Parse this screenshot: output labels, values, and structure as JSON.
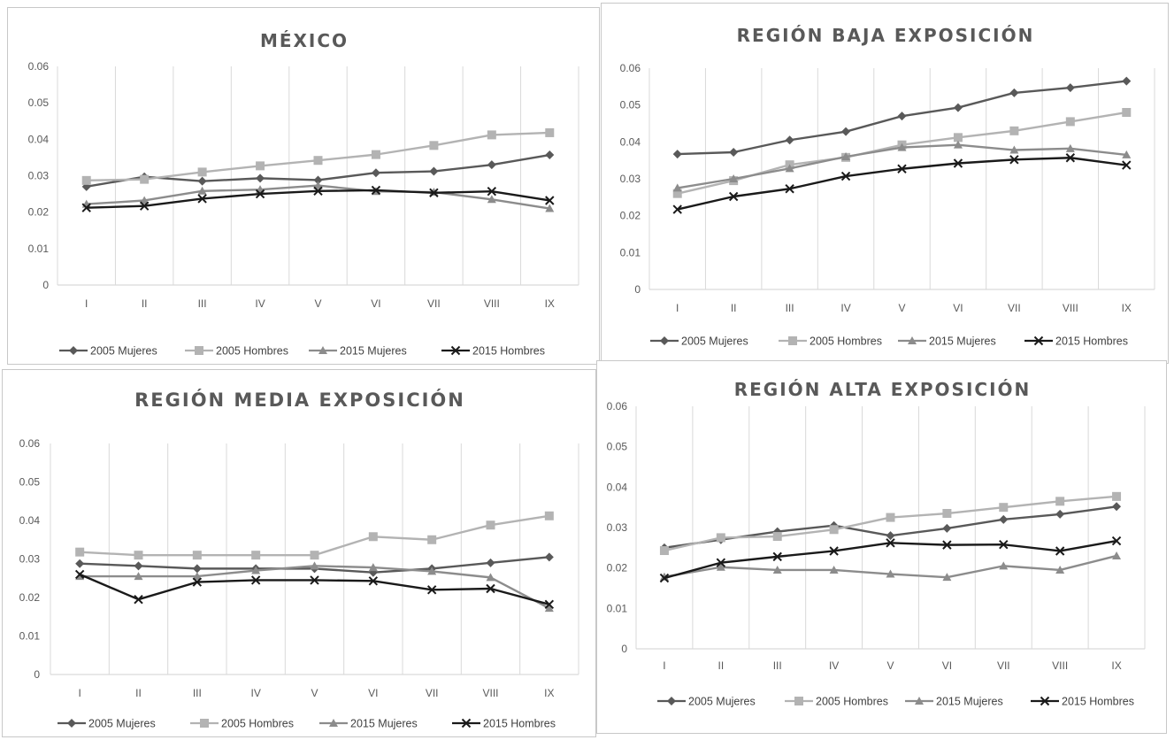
{
  "colors": {
    "s2005m": "#595959",
    "s2005h": "#b3b3b3",
    "s2015m": "#8c8c8c",
    "s2015h": "#1a1a1a",
    "grid": "#d9d9d9",
    "text": "#595959"
  },
  "series_names": [
    "2005 Mujeres",
    "2005 Hombres",
    "2015 Mujeres",
    "2015 Hombres"
  ],
  "chart_data": [
    {
      "type": "line",
      "title": "MÉXICO",
      "categories": [
        "I",
        "II",
        "III",
        "IV",
        "V",
        "VI",
        "VII",
        "VIII",
        "IX"
      ],
      "ylim": [
        0,
        0.06
      ],
      "yticks": [
        "0",
        "0.01",
        "0.02",
        "0.03",
        "0.04",
        "0.05",
        "0.06"
      ],
      "grid": true,
      "legend": "bottom",
      "series": [
        {
          "name": "2005 Mujeres",
          "marker": "diamond",
          "values": [
            0.027,
            0.0297,
            0.0285,
            0.0293,
            0.0288,
            0.0308,
            0.0312,
            0.033,
            0.0357
          ]
        },
        {
          "name": "2005 Hombres",
          "marker": "square",
          "values": [
            0.0287,
            0.029,
            0.031,
            0.0327,
            0.0342,
            0.0358,
            0.0383,
            0.0412,
            0.0418
          ]
        },
        {
          "name": "2015 Mujeres",
          "marker": "triangle",
          "values": [
            0.0222,
            0.0232,
            0.0258,
            0.0262,
            0.0273,
            0.0257,
            0.0255,
            0.0235,
            0.021
          ]
        },
        {
          "name": "2015 Hombres",
          "marker": "x",
          "values": [
            0.0212,
            0.0217,
            0.0237,
            0.025,
            0.0258,
            0.026,
            0.0253,
            0.0257,
            0.0232
          ]
        }
      ]
    },
    {
      "type": "line",
      "title": "REGIÓN BAJA EXPOSICIÓN",
      "categories": [
        "I",
        "II",
        "III",
        "IV",
        "V",
        "VI",
        "VII",
        "VIII",
        "IX"
      ],
      "ylim": [
        0,
        0.06
      ],
      "yticks": [
        "0",
        "0.01",
        "0.02",
        "0.03",
        "0.04",
        "0.05",
        "0.06"
      ],
      "grid": true,
      "legend": "bottom",
      "series": [
        {
          "name": "2005 Mujeres",
          "marker": "diamond",
          "values": [
            0.0367,
            0.0372,
            0.0405,
            0.0428,
            0.047,
            0.0493,
            0.0533,
            0.0547,
            0.0565
          ]
        },
        {
          "name": "2005 Hombres",
          "marker": "square",
          "values": [
            0.026,
            0.0295,
            0.0338,
            0.0358,
            0.0392,
            0.0412,
            0.043,
            0.0455,
            0.048
          ]
        },
        {
          "name": "2015 Mujeres",
          "marker": "triangle",
          "values": [
            0.0275,
            0.03,
            0.0328,
            0.036,
            0.0385,
            0.0392,
            0.0378,
            0.0382,
            0.0365
          ]
        },
        {
          "name": "2015 Hombres",
          "marker": "x",
          "values": [
            0.0217,
            0.0252,
            0.0273,
            0.0307,
            0.0327,
            0.0342,
            0.0352,
            0.0357,
            0.0337
          ]
        }
      ]
    },
    {
      "type": "line",
      "title": "REGIÓN MEDIA EXPOSICIÓN",
      "categories": [
        "I",
        "II",
        "III",
        "IV",
        "V",
        "VI",
        "VII",
        "VIII",
        "IX"
      ],
      "ylim": [
        0,
        0.06
      ],
      "yticks": [
        "0",
        "0.01",
        "0.02",
        "0.03",
        "0.04",
        "0.05",
        "0.06"
      ],
      "grid": true,
      "legend": "bottom",
      "series": [
        {
          "name": "2005 Mujeres",
          "marker": "diamond",
          "values": [
            0.0288,
            0.0282,
            0.0275,
            0.0275,
            0.0275,
            0.0265,
            0.0275,
            0.029,
            0.0305
          ]
        },
        {
          "name": "2005 Hombres",
          "marker": "square",
          "values": [
            0.0318,
            0.031,
            0.031,
            0.031,
            0.031,
            0.0358,
            0.035,
            0.0388,
            0.0412
          ]
        },
        {
          "name": "2015 Mujeres",
          "marker": "triangle",
          "values": [
            0.0255,
            0.0255,
            0.0255,
            0.027,
            0.0282,
            0.0278,
            0.0268,
            0.0252,
            0.0172
          ]
        },
        {
          "name": "2015 Hombres",
          "marker": "x",
          "values": [
            0.026,
            0.0195,
            0.024,
            0.0245,
            0.0245,
            0.0243,
            0.022,
            0.0223,
            0.0182
          ]
        }
      ]
    },
    {
      "type": "line",
      "title": "REGIÓN ALTA EXPOSICIÓN",
      "categories": [
        "I",
        "II",
        "III",
        "IV",
        "V",
        "VI",
        "VII",
        "VIII",
        "IX"
      ],
      "ylim": [
        0,
        0.06
      ],
      "yticks": [
        "0",
        "0.01",
        "0.02",
        "0.03",
        "0.04",
        "0.05",
        "0.06"
      ],
      "grid": true,
      "legend": "bottom",
      "series": [
        {
          "name": "2005 Mujeres",
          "marker": "diamond",
          "values": [
            0.025,
            0.027,
            0.029,
            0.0305,
            0.028,
            0.0298,
            0.032,
            0.0333,
            0.0352
          ]
        },
        {
          "name": "2005 Hombres",
          "marker": "square",
          "values": [
            0.0243,
            0.0275,
            0.0278,
            0.0295,
            0.0325,
            0.0335,
            0.035,
            0.0365,
            0.0377
          ]
        },
        {
          "name": "2015 Mujeres",
          "marker": "triangle",
          "values": [
            0.0178,
            0.0202,
            0.0195,
            0.0195,
            0.0185,
            0.0177,
            0.0205,
            0.0195,
            0.023
          ]
        },
        {
          "name": "2015 Hombres",
          "marker": "x",
          "values": [
            0.0175,
            0.0213,
            0.0228,
            0.0242,
            0.0262,
            0.0257,
            0.0258,
            0.0242,
            0.0267
          ]
        }
      ]
    }
  ]
}
